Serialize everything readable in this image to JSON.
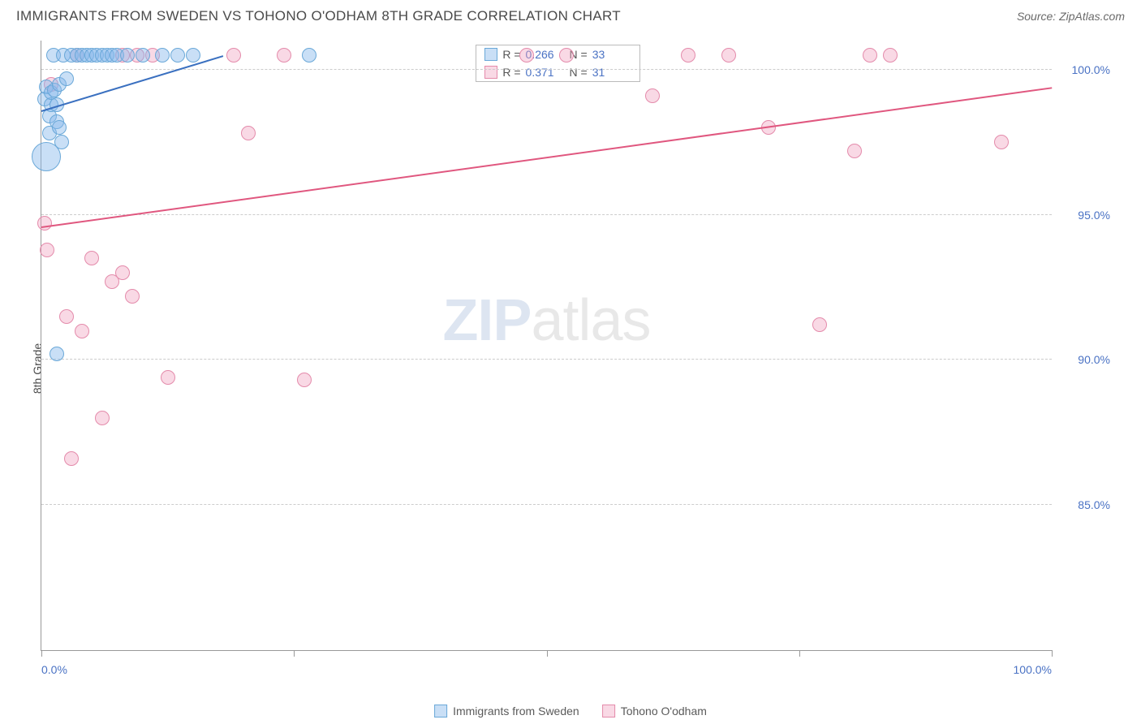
{
  "header": {
    "title": "IMMIGRANTS FROM SWEDEN VS TOHONO O'ODHAM 8TH GRADE CORRELATION CHART",
    "source": "Source: ZipAtlas.com"
  },
  "chart": {
    "type": "scatter",
    "y_axis_label": "8th Grade",
    "background_color": "#ffffff",
    "grid_color": "#cccccc",
    "axis_color": "#999999",
    "xlim": [
      0,
      100
    ],
    "ylim": [
      80,
      101
    ],
    "x_ticks": [
      {
        "pos": 0,
        "label": "0.0%"
      },
      {
        "pos": 25,
        "label": ""
      },
      {
        "pos": 50,
        "label": ""
      },
      {
        "pos": 75,
        "label": ""
      },
      {
        "pos": 100,
        "label": "100.0%"
      }
    ],
    "y_ticks": [
      {
        "pos": 85,
        "label": "85.0%"
      },
      {
        "pos": 90,
        "label": "90.0%"
      },
      {
        "pos": 95,
        "label": "95.0%"
      },
      {
        "pos": 100,
        "label": "100.0%"
      }
    ],
    "watermark": {
      "part1": "ZIP",
      "part2": "atlas"
    }
  },
  "series": {
    "sweden": {
      "label": "Immigrants from Sweden",
      "fill_color": "rgba(135,185,235,0.45)",
      "stroke_color": "#6aa8d8",
      "line_color": "#3a70c0",
      "marker_radius": 9,
      "R": "0.266",
      "N": "33",
      "trend": {
        "x1": 0,
        "y1": 98.6,
        "x2": 18,
        "y2": 100.5
      },
      "points": [
        {
          "x": 0.5,
          "y": 97.0,
          "r": 18
        },
        {
          "x": 0.3,
          "y": 99.0
        },
        {
          "x": 0.5,
          "y": 99.4
        },
        {
          "x": 0.8,
          "y": 98.4
        },
        {
          "x": 1.0,
          "y": 98.8
        },
        {
          "x": 1.2,
          "y": 100.5
        },
        {
          "x": 1.0,
          "y": 99.2
        },
        {
          "x": 1.3,
          "y": 99.3
        },
        {
          "x": 1.5,
          "y": 98.8
        },
        {
          "x": 1.8,
          "y": 99.5
        },
        {
          "x": 1.5,
          "y": 98.2
        },
        {
          "x": 0.8,
          "y": 97.8
        },
        {
          "x": 2.0,
          "y": 97.5
        },
        {
          "x": 2.2,
          "y": 100.5
        },
        {
          "x": 2.5,
          "y": 99.7
        },
        {
          "x": 3.0,
          "y": 100.5
        },
        {
          "x": 3.5,
          "y": 100.5
        },
        {
          "x": 4.0,
          "y": 100.5
        },
        {
          "x": 4.5,
          "y": 100.5
        },
        {
          "x": 5.0,
          "y": 100.5
        },
        {
          "x": 5.5,
          "y": 100.5
        },
        {
          "x": 6.0,
          "y": 100.5
        },
        {
          "x": 6.5,
          "y": 100.5
        },
        {
          "x": 7.0,
          "y": 100.5
        },
        {
          "x": 7.5,
          "y": 100.5
        },
        {
          "x": 8.5,
          "y": 100.5
        },
        {
          "x": 10.0,
          "y": 100.5
        },
        {
          "x": 12.0,
          "y": 100.5
        },
        {
          "x": 13.5,
          "y": 100.5
        },
        {
          "x": 15.0,
          "y": 100.5
        },
        {
          "x": 26.5,
          "y": 100.5
        },
        {
          "x": 1.5,
          "y": 90.2
        },
        {
          "x": 1.8,
          "y": 98.0
        }
      ]
    },
    "tohono": {
      "label": "Tohono O'odham",
      "fill_color": "rgba(240,160,190,0.40)",
      "stroke_color": "#e48bab",
      "line_color": "#e0577f",
      "marker_radius": 9,
      "R": "0.371",
      "N": "31",
      "trend": {
        "x1": 0,
        "y1": 94.6,
        "x2": 100,
        "y2": 99.4
      },
      "points": [
        {
          "x": 0.3,
          "y": 94.7
        },
        {
          "x": 0.6,
          "y": 93.8
        },
        {
          "x": 2.5,
          "y": 91.5
        },
        {
          "x": 4.0,
          "y": 91.0
        },
        {
          "x": 5.0,
          "y": 93.5
        },
        {
          "x": 7.0,
          "y": 92.7
        },
        {
          "x": 8.0,
          "y": 93.0
        },
        {
          "x": 9.0,
          "y": 92.2
        },
        {
          "x": 3.0,
          "y": 86.6
        },
        {
          "x": 6.0,
          "y": 88.0
        },
        {
          "x": 12.5,
          "y": 89.4
        },
        {
          "x": 26.0,
          "y": 89.3
        },
        {
          "x": 3.5,
          "y": 100.5
        },
        {
          "x": 8.0,
          "y": 100.5
        },
        {
          "x": 9.5,
          "y": 100.5
        },
        {
          "x": 11.0,
          "y": 100.5
        },
        {
          "x": 19.0,
          "y": 100.5
        },
        {
          "x": 24.0,
          "y": 100.5
        },
        {
          "x": 20.5,
          "y": 97.8
        },
        {
          "x": 48.0,
          "y": 100.5
        },
        {
          "x": 52.0,
          "y": 100.5
        },
        {
          "x": 64.0,
          "y": 100.5
        },
        {
          "x": 60.5,
          "y": 99.1
        },
        {
          "x": 68.0,
          "y": 100.5
        },
        {
          "x": 72.0,
          "y": 98.0
        },
        {
          "x": 77.0,
          "y": 91.2
        },
        {
          "x": 80.5,
          "y": 97.2
        },
        {
          "x": 82.0,
          "y": 100.5
        },
        {
          "x": 84.0,
          "y": 100.5
        },
        {
          "x": 95.0,
          "y": 97.5
        },
        {
          "x": 1.0,
          "y": 99.5
        }
      ]
    }
  },
  "stat_box": {
    "rows": [
      {
        "swatch_fill": "rgba(135,185,235,0.45)",
        "swatch_border": "#6aa8d8",
        "r_label": "R =",
        "r_val": "0.266",
        "n_label": "N =",
        "n_val": "33"
      },
      {
        "swatch_fill": "rgba(240,160,190,0.40)",
        "swatch_border": "#e48bab",
        "r_label": "R =",
        "r_val": "0.371",
        "n_label": "N =",
        "n_val": "31"
      }
    ]
  },
  "bottom_legend": [
    {
      "swatch_fill": "rgba(135,185,235,0.45)",
      "swatch_border": "#6aa8d8",
      "label": "Immigrants from Sweden"
    },
    {
      "swatch_fill": "rgba(240,160,190,0.40)",
      "swatch_border": "#e48bab",
      "label": "Tohono O'odham"
    }
  ]
}
